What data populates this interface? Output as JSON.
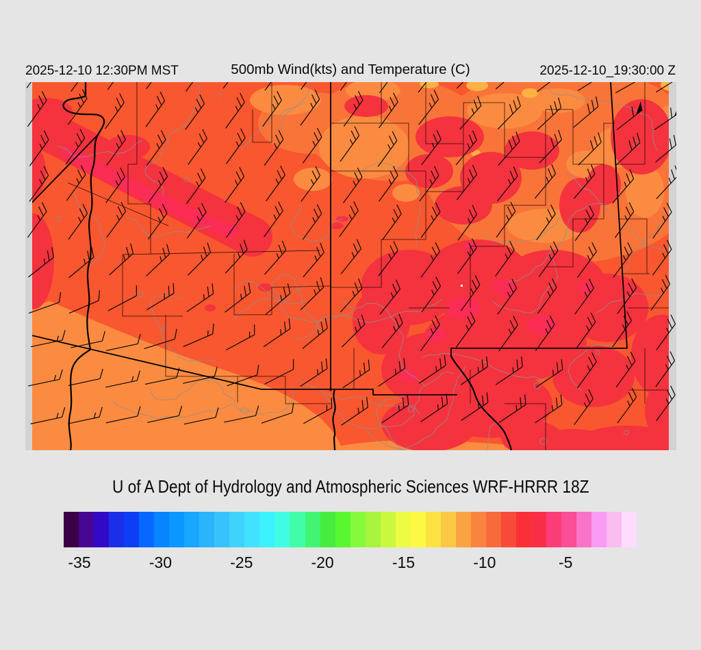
{
  "header": {
    "left_timestamp": "2025-12-10 12:30PM MST",
    "title": "500mb Wind(kts) and Temperature (C)",
    "right_timestamp": "2025-12-10_19:30:00 Z"
  },
  "caption": "U of A Dept of Hydrology and Atmospheric Sciences WRF-HRRR 18Z",
  "colorbar": {
    "unit": "C",
    "tick_labels": [
      "-35",
      "-30",
      "-25",
      "-20",
      "-15",
      "-10",
      "-5"
    ],
    "colors": [
      "#3A0345",
      "#470693",
      "#3209C7",
      "#1C2FE8",
      "#0D3EF5",
      "#0768FF",
      "#0784FF",
      "#0A97FF",
      "#18A6FF",
      "#2BB3FB",
      "#38C2FB",
      "#3FD2FC",
      "#40E2FD",
      "#3BF2FE",
      "#3FFDE2",
      "#41FDA8",
      "#41F573",
      "#47EC3F",
      "#58F72F",
      "#85FA3C",
      "#A8F43D",
      "#C9F83E",
      "#EDFB42",
      "#FDF943",
      "#FBE242",
      "#FBC844",
      "#FAA342",
      "#F98440",
      "#F8693C",
      "#F84A38",
      "#FA3037",
      "#FA2D49",
      "#FB3D77",
      "#FA4E96",
      "#F973C7",
      "#FA9BF5",
      "#FBBCEF",
      "#FDDCFE"
    ]
  },
  "map": {
    "colors": {
      "base": "#F9572F",
      "mid": "#F97439",
      "light": "#FB8B41",
      "red": "#F4333E",
      "crimson": "#FB2D55",
      "yellow": "#FFB243",
      "margin": "#D3D3D3",
      "contour": "#8F8F8F",
      "border": "#000000",
      "barb": "#0A0A0A",
      "white_dot": "#FFFFFF"
    },
    "wind": {
      "grid_dx": 57,
      "grid_dy": 54,
      "staff_len": 47,
      "tick_len": 15,
      "angle_main_deg": 54,
      "angle_sw_deg": 12,
      "angle_ne_deg": 74,
      "speed_main_kts": 25,
      "speed_sw_kts": 15,
      "speed_ne_kts": 35,
      "speed_corner_kts": 55
    }
  }
}
